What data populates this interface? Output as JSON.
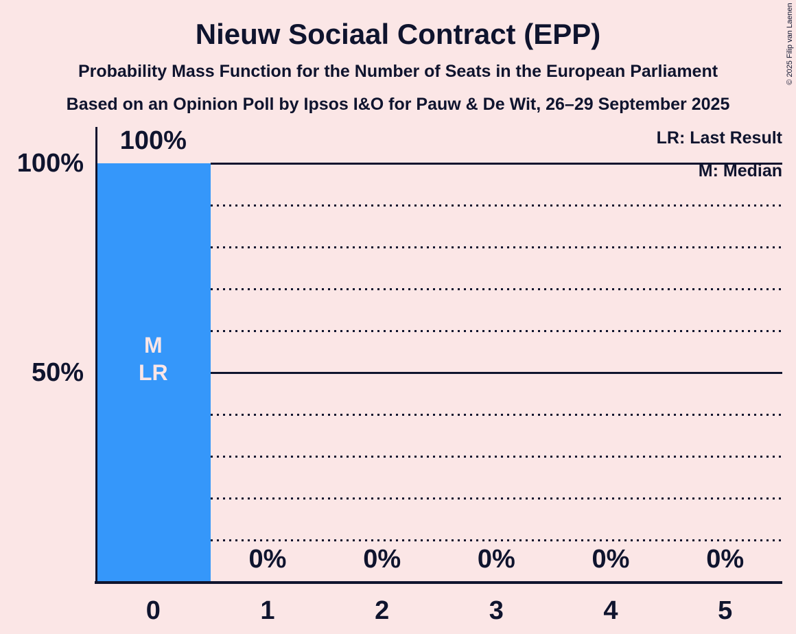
{
  "header": {
    "title": "Nieuw Sociaal Contract (EPP)",
    "subtitle": "Probability Mass Function for the Number of Seats in the European Parliament",
    "source_line": "Based on an Opinion Poll by Ipsos I&O for Pauw & De Wit, 26–29 September 2025"
  },
  "copyright": "© 2025 Filip van Laenen",
  "legend": {
    "last_result": "LR: Last Result",
    "median": "M: Median"
  },
  "colors": {
    "background": "#fbe6e6",
    "text": "#0f142e",
    "bar": "#3597fa",
    "bar_annotation_text": "#fbe6e6"
  },
  "chart_data": {
    "type": "bar",
    "title": "Nieuw Sociaal Contract (EPP)",
    "categories": [
      "0",
      "1",
      "2",
      "3",
      "4",
      "5"
    ],
    "values": [
      100,
      0,
      0,
      0,
      0,
      0
    ],
    "value_labels": [
      "100%",
      "0%",
      "0%",
      "0%",
      "0%",
      "0%"
    ],
    "ylim": [
      0,
      100
    ],
    "yticks": [
      100,
      50
    ],
    "ytick_labels": [
      "100%",
      "50%"
    ],
    "gridlines": {
      "solid_percents": [
        100,
        50
      ],
      "dotted_percents": [
        90,
        80,
        70,
        60,
        40,
        30,
        20,
        10
      ]
    },
    "median_seat": 0,
    "last_result_seat": 0,
    "bar_annotations": [
      "M",
      "LR"
    ],
    "legend_position": "top-right"
  }
}
